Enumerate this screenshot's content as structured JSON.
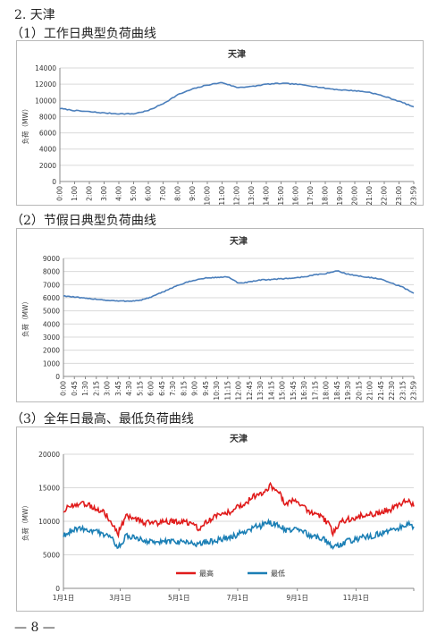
{
  "section_title": "2. 天津",
  "headings": [
    "（1）工作日典型负荷曲线",
    "（2）节假日典型负荷曲线",
    "（3）全年日最高、最低负荷曲线"
  ],
  "footer": "— 8 —",
  "chart_data": [
    {
      "type": "line",
      "title": "天津",
      "ylabel": "负荷（MW）",
      "xlabel": "",
      "ylim": [
        0,
        14000
      ],
      "yticks": [
        0,
        2000,
        4000,
        6000,
        8000,
        10000,
        12000,
        14000
      ],
      "grid": true,
      "x": [
        "0:00",
        "1:00",
        "2:00",
        "3:00",
        "4:00",
        "5:00",
        "6:00",
        "7:00",
        "8:00",
        "9:00",
        "10:00",
        "11:00",
        "12:00",
        "13:00",
        "14:00",
        "15:00",
        "16:00",
        "17:00",
        "18:00",
        "19:00",
        "20:00",
        "21:00",
        "22:00",
        "23:00",
        "23:59"
      ],
      "series": [
        {
          "color": "#4a7ebb",
          "values": [
            9000,
            8750,
            8600,
            8450,
            8350,
            8350,
            8750,
            9600,
            10700,
            11400,
            11900,
            12200,
            11600,
            11700,
            12000,
            12100,
            12000,
            11800,
            11500,
            11300,
            11200,
            11000,
            10500,
            9900,
            9200
          ]
        }
      ]
    },
    {
      "type": "line",
      "title": "天津",
      "ylabel": "负荷（MW）",
      "xlabel": "",
      "ylim": [
        0,
        9000
      ],
      "yticks": [
        0,
        1000,
        2000,
        3000,
        4000,
        5000,
        6000,
        7000,
        8000,
        9000
      ],
      "grid": true,
      "x": [
        "0:00",
        "0:45",
        "1:30",
        "2:15",
        "3:00",
        "3:45",
        "4:30",
        "5:15",
        "6:00",
        "6:45",
        "7:30",
        "8:15",
        "9:00",
        "9:45",
        "10:30",
        "11:15",
        "12:00",
        "12:45",
        "13:30",
        "14:15",
        "15:00",
        "15:45",
        "16:30",
        "17:15",
        "18:00",
        "18:45",
        "19:30",
        "20:15",
        "21:00",
        "21:45",
        "22:30",
        "23:15",
        "23:59"
      ],
      "series": [
        {
          "color": "#4a7ebb",
          "values": [
            6150,
            6050,
            5950,
            5900,
            5800,
            5750,
            5750,
            5800,
            6050,
            6400,
            6800,
            7100,
            7350,
            7500,
            7550,
            7600,
            7100,
            7200,
            7350,
            7400,
            7450,
            7500,
            7600,
            7750,
            7850,
            8050,
            7800,
            7650,
            7550,
            7400,
            7100,
            6800,
            6350
          ]
        }
      ]
    },
    {
      "type": "line",
      "title": "天津",
      "ylabel": "负荷（MW）",
      "xlabel": "",
      "ylim": [
        0,
        20000
      ],
      "yticks": [
        0,
        5000,
        10000,
        15000,
        20000
      ],
      "grid": true,
      "x_ticks": [
        "1月1日",
        "3月1日",
        "5月1日",
        "7月1日",
        "9月1日",
        "11月1日"
      ],
      "x_tick_days": [
        0,
        59,
        120,
        181,
        243,
        304
      ],
      "x_range_days": [
        0,
        364
      ],
      "legend_position": "bottom-center",
      "series": [
        {
          "name": "最高",
          "color": "#e01b1b",
          "days": [
            0,
            10,
            20,
            30,
            40,
            50,
            57,
            65,
            75,
            85,
            95,
            105,
            115,
            125,
            135,
            140,
            150,
            160,
            170,
            180,
            190,
            195,
            200,
            210,
            215,
            225,
            230,
            240,
            250,
            260,
            270,
            275,
            280,
            290,
            300,
            310,
            320,
            330,
            340,
            350,
            358,
            364
          ],
          "values": [
            11500,
            12500,
            12800,
            12200,
            11600,
            10000,
            8200,
            10800,
            10200,
            9800,
            9700,
            9900,
            10000,
            9800,
            9700,
            8800,
            10200,
            10800,
            11200,
            12000,
            12800,
            13500,
            13800,
            14500,
            15400,
            14000,
            12500,
            13200,
            12000,
            11200,
            10500,
            9600,
            8300,
            10000,
            10500,
            10800,
            11000,
            11500,
            11800,
            12600,
            13300,
            12200
          ]
        },
        {
          "name": "最低",
          "color": "#1b7fb5",
          "days": [
            0,
            10,
            20,
            30,
            40,
            50,
            57,
            65,
            75,
            85,
            95,
            105,
            115,
            125,
            135,
            140,
            150,
            160,
            170,
            180,
            190,
            195,
            200,
            210,
            215,
            225,
            230,
            240,
            250,
            260,
            270,
            275,
            280,
            290,
            300,
            310,
            320,
            330,
            340,
            350,
            358,
            364
          ],
          "values": [
            7800,
            8800,
            9000,
            8600,
            8200,
            7400,
            6100,
            7800,
            7500,
            7000,
            6800,
            7000,
            7000,
            6900,
            6800,
            6600,
            7000,
            7200,
            7500,
            8000,
            8500,
            8900,
            9200,
            9500,
            9800,
            9400,
            8700,
            8800,
            8300,
            7800,
            7300,
            6800,
            6000,
            6800,
            7200,
            7600,
            7800,
            8200,
            8500,
            9000,
            9600,
            9200
          ]
        }
      ]
    }
  ]
}
